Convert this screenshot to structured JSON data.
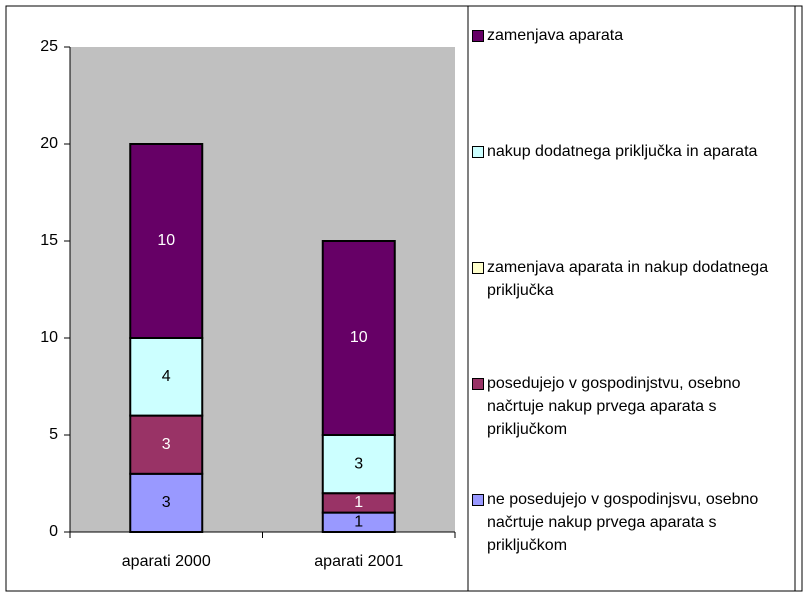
{
  "chart_data": {
    "type": "stacked_bar",
    "categories": [
      "aparati 2000",
      "aparati 2001"
    ],
    "series": [
      {
        "name": "ne posedujejo v gospodinjsvu, osebno načrtuje nakup prvega aparata s priključkom",
        "color": "#9999ff",
        "values": [
          3,
          1
        ]
      },
      {
        "name": "posedujejo v gospodinjstvu, osebno načrtuje nakup prvega aparata s priključkom",
        "color": "#993366",
        "values": [
          3,
          1
        ]
      },
      {
        "name": "zamenjava aparata in nakup dodatnega priključka",
        "color": "#ffffcc",
        "values": [
          0,
          0
        ]
      },
      {
        "name": "nakup dodatnega priključka in aparata",
        "color": "#ccffff",
        "values": [
          4,
          3
        ]
      },
      {
        "name": "zamenjava aparata",
        "color": "#660066",
        "values": [
          10,
          10
        ]
      }
    ],
    "ylim": [
      0,
      25
    ],
    "yticks": [
      0,
      5,
      10,
      15,
      20,
      25
    ],
    "grid": false,
    "plot_background": "#c0c0c0",
    "legend": "right"
  }
}
